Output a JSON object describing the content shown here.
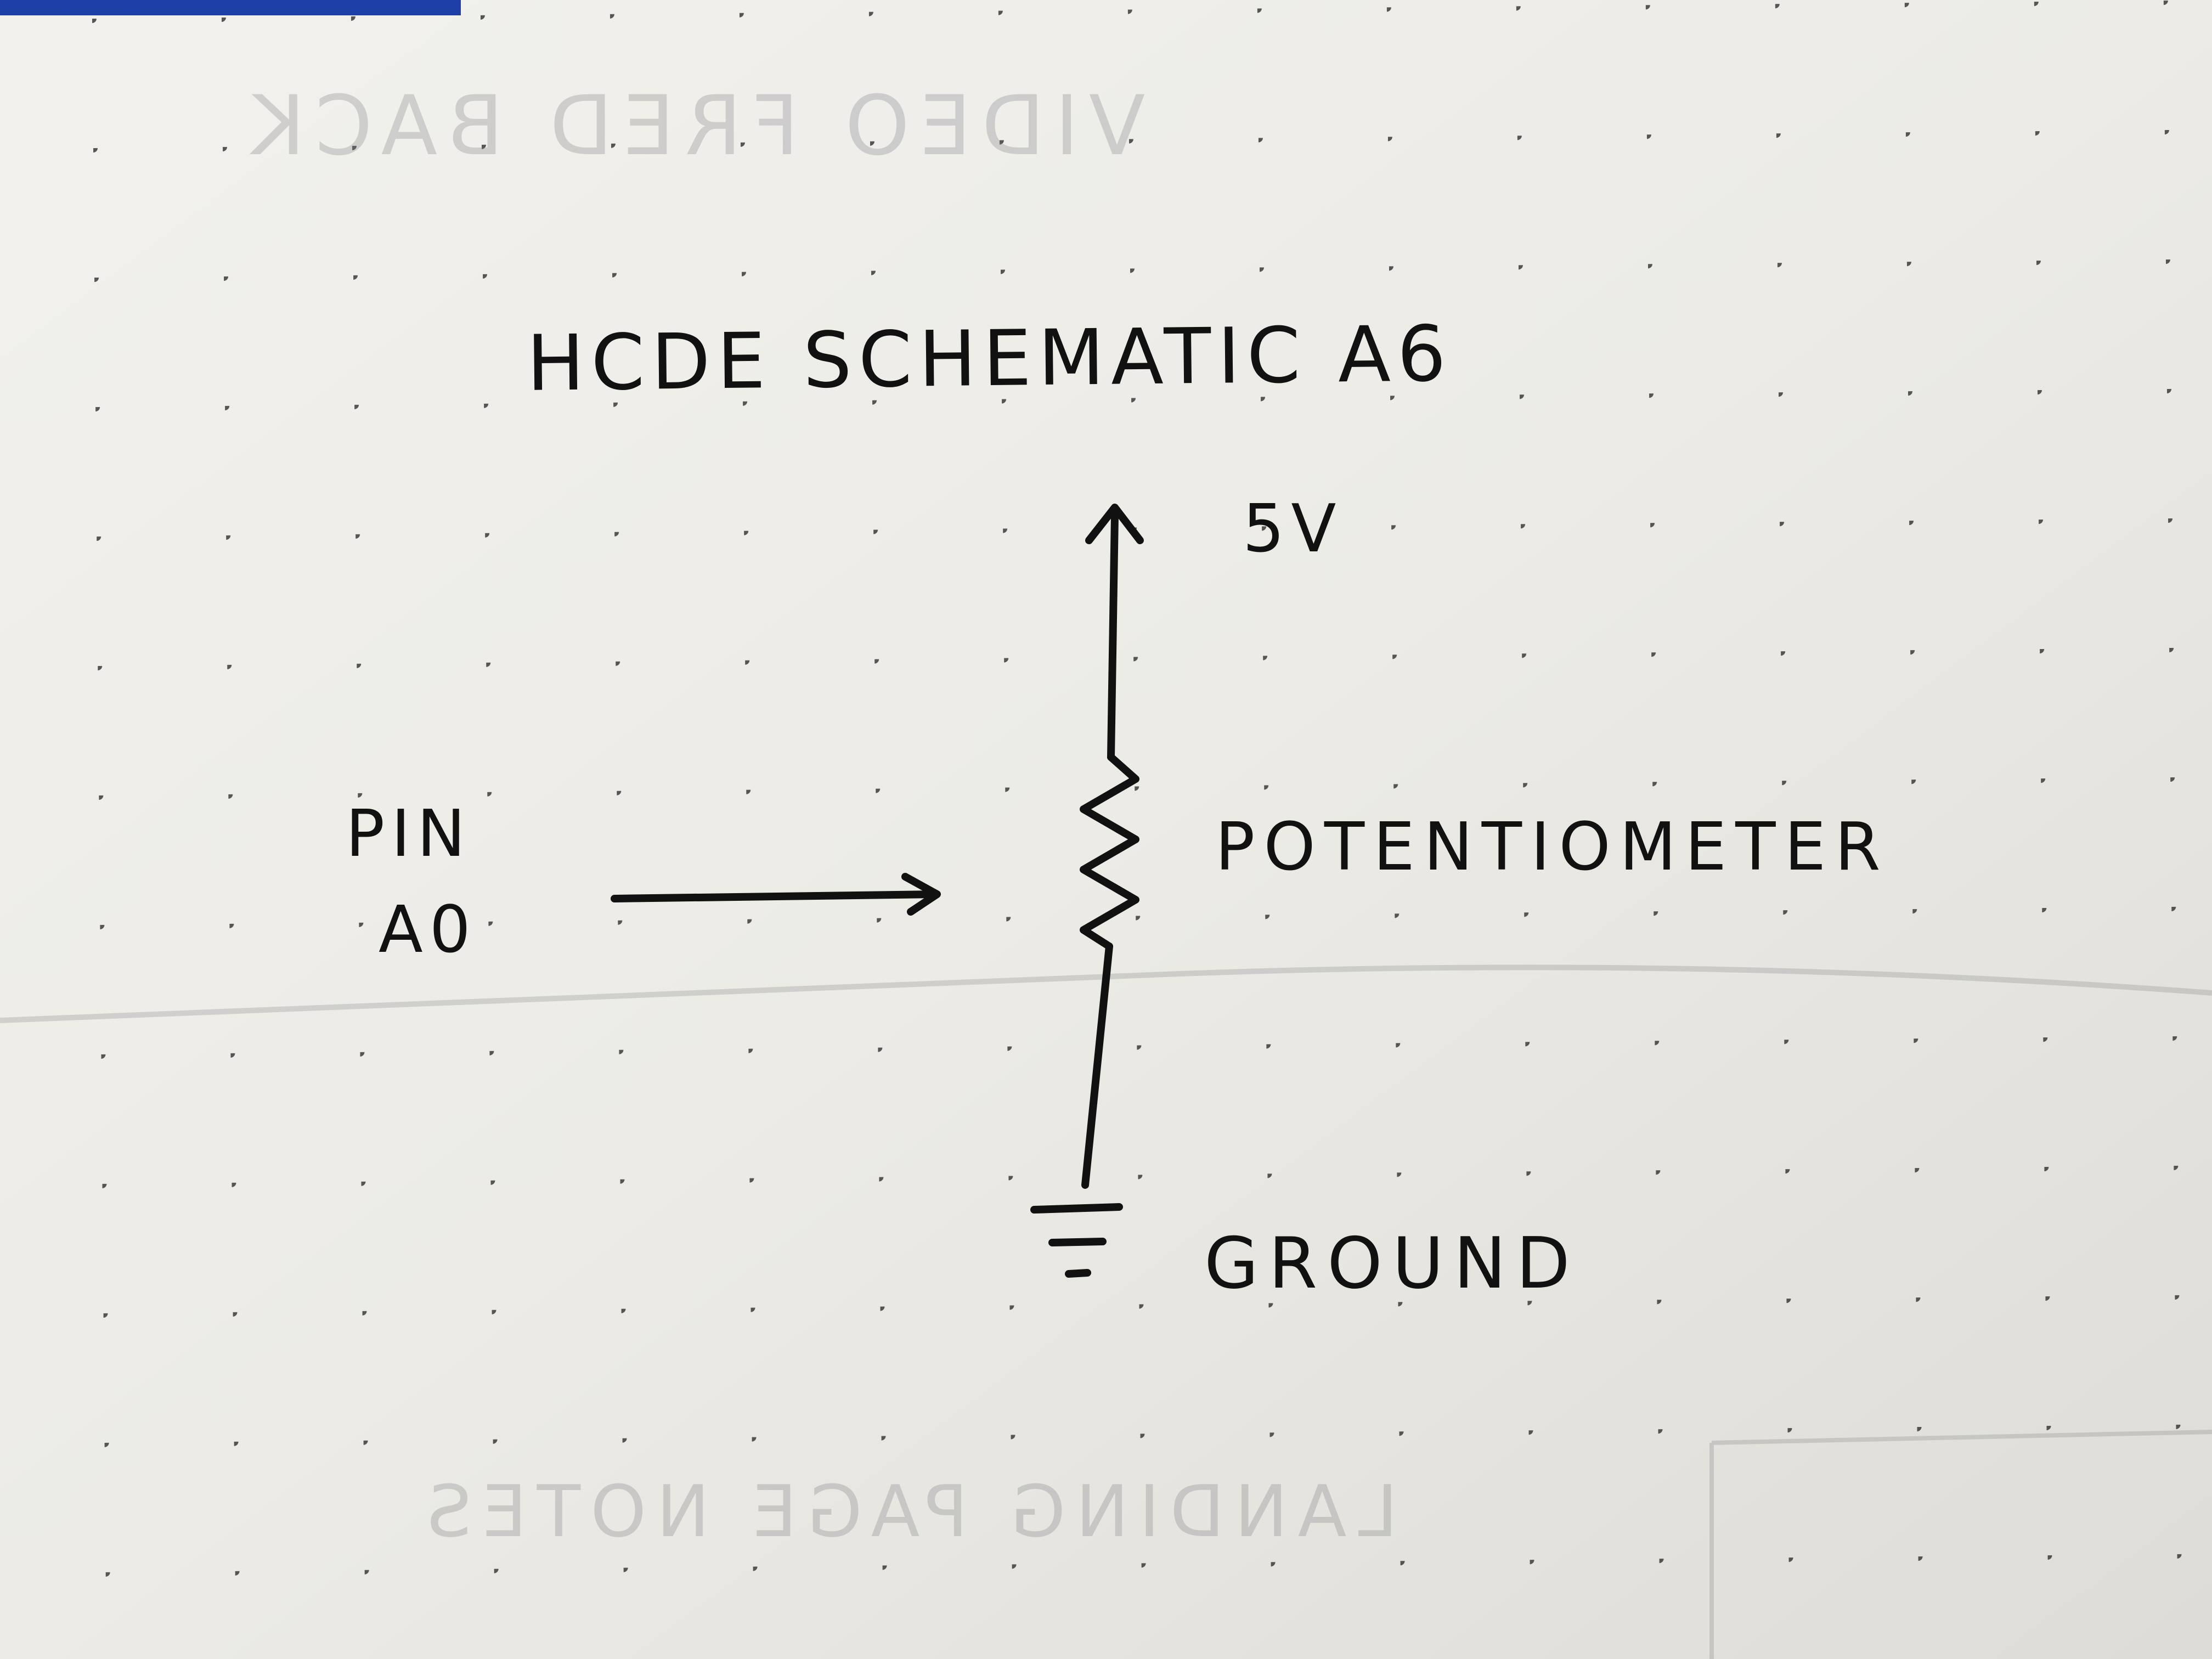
{
  "diagram": {
    "title": "HCDE SCHEMATIC A6",
    "supply_label": "5V",
    "pin_label_line1": "PIN",
    "pin_label_line2": "A0",
    "component_label": "POTENTIOMETER",
    "ground_label": "GROUND"
  },
  "bleed_through": {
    "top": "VIDEO FRED BACK",
    "bottom": "LANDING PAGE NOTES"
  },
  "colors": {
    "paper": "#efeeea",
    "ink": "#111111",
    "dots": "#3a3a3a",
    "top_edge": "#1f3fa8"
  }
}
